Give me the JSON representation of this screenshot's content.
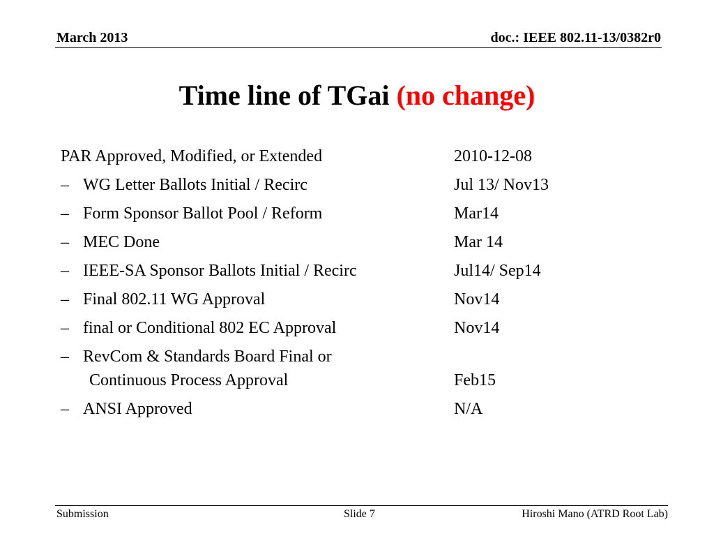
{
  "header": {
    "date": "March 2013",
    "doc_id": "doc.: IEEE 802.11-13/0382r0"
  },
  "title": {
    "main": "Time line of TGai",
    "highlight": "(no change)",
    "highlight_color": "#ff0000"
  },
  "timeline": {
    "top_item": {
      "label": "PAR Approved, Modified, or Extended",
      "date": "2010-12-08"
    },
    "bullet": "–",
    "items": [
      {
        "label": "WG Letter Ballots Initial / Recirc",
        "date": "Jul 13/ Nov13"
      },
      {
        "label": "Form Sponsor Ballot Pool / Reform",
        "date": "Mar14"
      },
      {
        "label": "MEC Done",
        "date": "Mar 14"
      },
      {
        "label": "IEEE-SA Sponsor Ballots Initial / Recirc",
        "date": "Jul14/ Sep14"
      },
      {
        "label": "Final 802.11 WG Approval",
        "date": "Nov14"
      },
      {
        "label": "final or Conditional 802 EC Approval",
        "date": "Nov14"
      },
      {
        "label": "RevCom & Standards Board Final or",
        "label_line2": "Continuous Process Approval",
        "date": "Feb15"
      },
      {
        "label": "ANSI Approved",
        "date": "N/A"
      }
    ]
  },
  "footer": {
    "left": "Submission",
    "center": "Slide 7",
    "right": "Hiroshi Mano (ATRD Root Lab)"
  }
}
